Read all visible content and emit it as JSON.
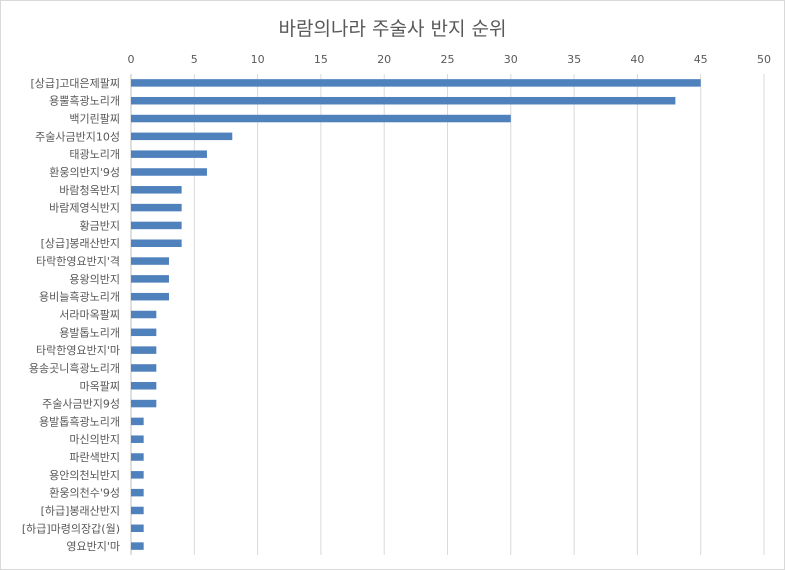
{
  "chart_data": {
    "type": "bar",
    "orientation": "horizontal",
    "title": "바람의나라 주술사 반지 순위",
    "xlabel": "",
    "ylabel": "",
    "xlim": [
      0,
      50
    ],
    "xticks": [
      0,
      5,
      10,
      15,
      20,
      25,
      30,
      35,
      40,
      45,
      50
    ],
    "axis_position": "top",
    "grid": true,
    "legend": "none",
    "bar_color": "#4f81bd",
    "categories": [
      "[상급]고대은제팔찌",
      "용뿔흑광노리개",
      "백기린팔찌",
      "주술사금반지10성",
      "태광노리개",
      "환웅의반지'9성",
      "바람청옥반지",
      "바람제영식반지",
      "황금반지",
      "[상급]봉래산반지",
      "타락한영요반지'격",
      "용왕의반지",
      "용비늘흑광노리개",
      "서라마옥팔찌",
      "용발톱노리개",
      "타락한영요반지'마",
      "용송곳니흑광노리개",
      "마옥팔찌",
      "주술사금반지9성",
      "용발톱흑광노리개",
      "마신의반지",
      "파란색반지",
      "용안의천뇌반지",
      "환웅의천수'9성",
      "[하급]봉래산반지",
      "[하급]마령의장갑(월)",
      "영요반지'마"
    ],
    "values": [
      45,
      43,
      30,
      8,
      6,
      6,
      4,
      4,
      4,
      4,
      3,
      3,
      3,
      2,
      2,
      2,
      2,
      2,
      2,
      1,
      1,
      1,
      1,
      1,
      1,
      1,
      1
    ]
  }
}
